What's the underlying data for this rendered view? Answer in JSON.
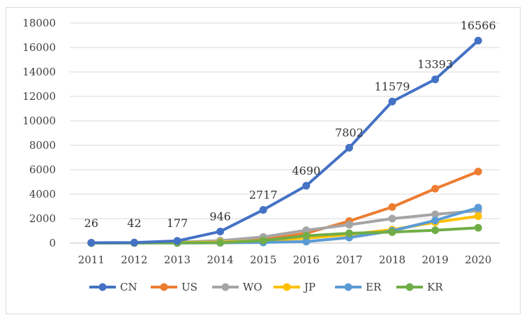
{
  "chart_data": {
    "type": "line",
    "x": [
      "2011",
      "2012",
      "2013",
      "2014",
      "2015",
      "2016",
      "2017",
      "2018",
      "2019",
      "2020"
    ],
    "ylim": [
      0,
      18000
    ],
    "yticks": [
      0,
      2000,
      4000,
      6000,
      8000,
      10000,
      12000,
      14000,
      16000,
      18000
    ],
    "grid": true,
    "legend_position": "bottom",
    "series": [
      {
        "name": "CN",
        "color": "#4472C4",
        "values": [
          26,
          42,
          177,
          946,
          2717,
          4690,
          7802,
          11579,
          13393,
          16566
        ],
        "labels": [
          "26",
          "42",
          "177",
          "946",
          "2717",
          "4690",
          "7802",
          "11579",
          "13393",
          "16566"
        ]
      },
      {
        "name": "US",
        "color": "#ED7D31",
        "values": [
          20,
          30,
          60,
          120,
          280,
          800,
          1800,
          2950,
          4450,
          5850
        ]
      },
      {
        "name": "WO",
        "color": "#A5A5A5",
        "values": [
          10,
          25,
          70,
          200,
          500,
          1050,
          1500,
          2000,
          2350,
          2650
        ]
      },
      {
        "name": "JP",
        "color": "#FFC000",
        "values": [
          15,
          25,
          50,
          80,
          200,
          400,
          700,
          1100,
          1700,
          2200
        ]
      },
      {
        "name": "ER",
        "color": "#5B9BD5",
        "values": [
          0,
          5,
          10,
          20,
          50,
          120,
          450,
          1000,
          1850,
          2900
        ]
      },
      {
        "name": "KR",
        "color": "#70AD47",
        "values": [
          0,
          5,
          15,
          30,
          200,
          600,
          800,
          900,
          1050,
          1250
        ]
      }
    ]
  }
}
